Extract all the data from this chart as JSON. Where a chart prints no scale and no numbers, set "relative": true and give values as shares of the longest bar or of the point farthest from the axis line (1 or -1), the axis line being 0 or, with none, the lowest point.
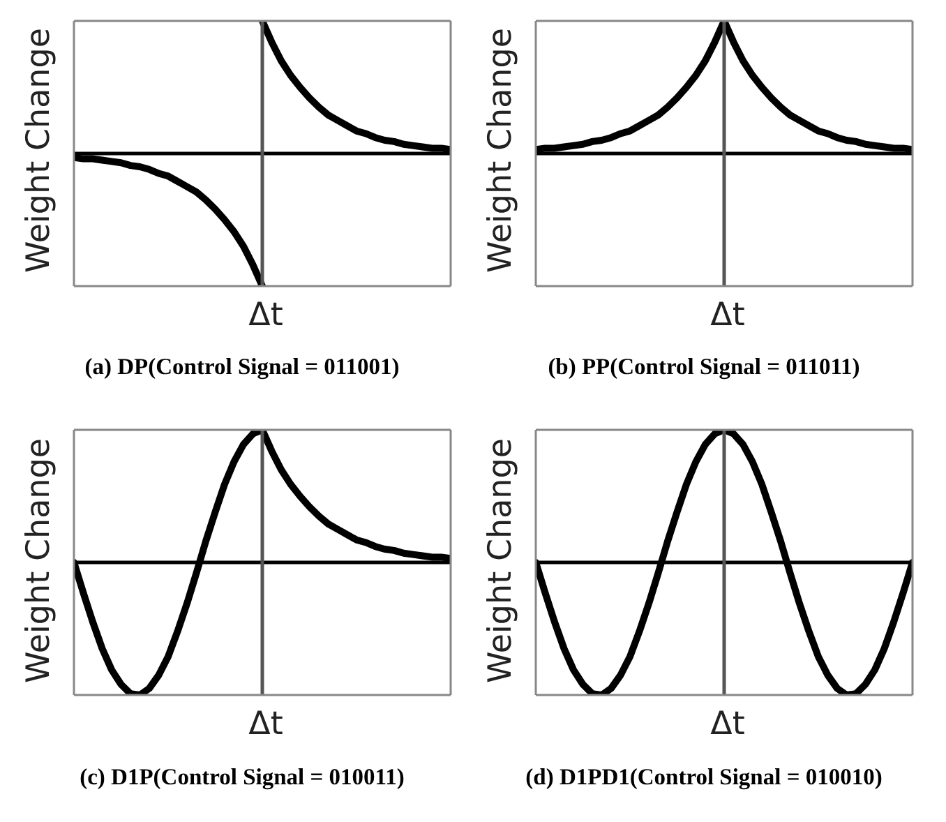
{
  "chart_data": [
    {
      "type": "line",
      "title": "(a) DP(Control Signal = 011001)",
      "xlabel": "Δt",
      "ylabel": "Weight Change",
      "relative": true,
      "marker": "none",
      "line_style": "solid",
      "categories": [
        null,
        null,
        null,
        null,
        null,
        null,
        null,
        null,
        null,
        null,
        null,
        null,
        null,
        null,
        null,
        null,
        null,
        null,
        null,
        null,
        null,
        null,
        null,
        null,
        null,
        null,
        null,
        null,
        null,
        null,
        null,
        null,
        null,
        null,
        null,
        null,
        null,
        null,
        null,
        null,
        null
      ],
      "series": [
        {
          "color": "#000000",
          "values": [
            -0.03,
            -0.04,
            -0.04,
            -0.05,
            -0.06,
            -0.07,
            -0.09,
            -0.1,
            -0.12,
            -0.15,
            -0.17,
            -0.21,
            -0.25,
            -0.29,
            -0.35,
            -0.42,
            -0.5,
            -0.59,
            -0.7,
            -0.84,
            -1,
            null,
            null,
            null,
            null,
            null,
            null,
            null,
            null,
            null,
            null,
            null,
            null,
            null,
            null,
            null,
            null,
            null,
            null,
            null,
            null
          ]
        },
        {
          "color": "#000000",
          "values": [
            null,
            null,
            null,
            null,
            null,
            null,
            null,
            null,
            null,
            null,
            null,
            null,
            null,
            null,
            null,
            null,
            null,
            null,
            null,
            null,
            1,
            0.84,
            0.7,
            0.59,
            0.5,
            0.42,
            0.35,
            0.29,
            0.25,
            0.21,
            0.17,
            0.15,
            0.12,
            0.1,
            0.09,
            0.07,
            0.06,
            0.05,
            0.04,
            0.04,
            0.03
          ]
        }
      ]
    },
    {
      "type": "line",
      "title": "(b) PP(Control Signal = 011011)",
      "xlabel": "Δt",
      "ylabel": "Weight Change",
      "relative": true,
      "marker": "none",
      "line_style": "solid",
      "categories": [
        null,
        null,
        null,
        null,
        null,
        null,
        null,
        null,
        null,
        null,
        null,
        null,
        null,
        null,
        null,
        null,
        null,
        null,
        null,
        null,
        null,
        null,
        null,
        null,
        null,
        null,
        null,
        null,
        null,
        null,
        null,
        null,
        null,
        null,
        null,
        null,
        null,
        null,
        null,
        null,
        null
      ],
      "series": [
        {
          "color": "#000000",
          "values": [
            0.03,
            0.04,
            0.04,
            0.05,
            0.06,
            0.07,
            0.09,
            0.1,
            0.12,
            0.15,
            0.17,
            0.21,
            0.25,
            0.29,
            0.35,
            0.42,
            0.5,
            0.59,
            0.7,
            0.84,
            1,
            0.84,
            0.7,
            0.59,
            0.5,
            0.42,
            0.35,
            0.29,
            0.25,
            0.21,
            0.17,
            0.15,
            0.12,
            0.1,
            0.09,
            0.07,
            0.06,
            0.05,
            0.04,
            0.04,
            0.03
          ]
        }
      ]
    },
    {
      "type": "line",
      "title": "(c) D1P(Control Signal = 010011)",
      "xlabel": "Δt",
      "ylabel": "Weight Change",
      "relative": true,
      "marker": "none",
      "line_style": "solid",
      "categories": [
        null,
        null,
        null,
        null,
        null,
        null,
        null,
        null,
        null,
        null,
        null,
        null,
        null,
        null,
        null,
        null,
        null,
        null,
        null,
        null,
        null,
        null,
        null,
        null,
        null,
        null,
        null,
        null,
        null,
        null,
        null,
        null,
        null,
        null,
        null,
        null,
        null,
        null,
        null,
        null,
        null
      ],
      "series": [
        {
          "color": "#000000",
          "values": [
            0,
            -0.23,
            -0.45,
            -0.65,
            -0.81,
            -0.92,
            -0.99,
            -1,
            -0.95,
            -0.85,
            -0.71,
            -0.52,
            -0.31,
            -0.08,
            0.16,
            0.38,
            0.59,
            0.76,
            0.89,
            0.97,
            1,
            0.84,
            0.7,
            0.59,
            0.5,
            0.42,
            0.35,
            0.29,
            0.25,
            0.21,
            0.17,
            0.15,
            0.12,
            0.1,
            0.09,
            0.07,
            0.06,
            0.05,
            0.04,
            0.04,
            0.03
          ]
        }
      ]
    },
    {
      "type": "line",
      "title": "(d) D1PD1(Control Signal = 010010)",
      "xlabel": "Δt",
      "ylabel": "Weight Change",
      "relative": true,
      "marker": "none",
      "line_style": "solid",
      "categories": [
        null,
        null,
        null,
        null,
        null,
        null,
        null,
        null,
        null,
        null,
        null,
        null,
        null,
        null,
        null,
        null,
        null,
        null,
        null,
        null,
        null,
        null,
        null,
        null,
        null,
        null,
        null,
        null,
        null,
        null,
        null,
        null,
        null,
        null,
        null,
        null,
        null,
        null,
        null,
        null,
        null
      ],
      "series": [
        {
          "color": "#000000",
          "values": [
            0,
            -0.23,
            -0.45,
            -0.65,
            -0.81,
            -0.92,
            -0.99,
            -1,
            -0.95,
            -0.85,
            -0.71,
            -0.52,
            -0.31,
            -0.08,
            0.16,
            0.38,
            0.59,
            0.76,
            0.89,
            0.97,
            1,
            0.97,
            0.89,
            0.76,
            0.59,
            0.38,
            0.16,
            -0.08,
            -0.31,
            -0.52,
            -0.71,
            -0.85,
            -0.95,
            -1,
            -0.99,
            -0.92,
            -0.81,
            -0.65,
            -0.45,
            -0.23,
            0
          ]
        }
      ]
    }
  ]
}
